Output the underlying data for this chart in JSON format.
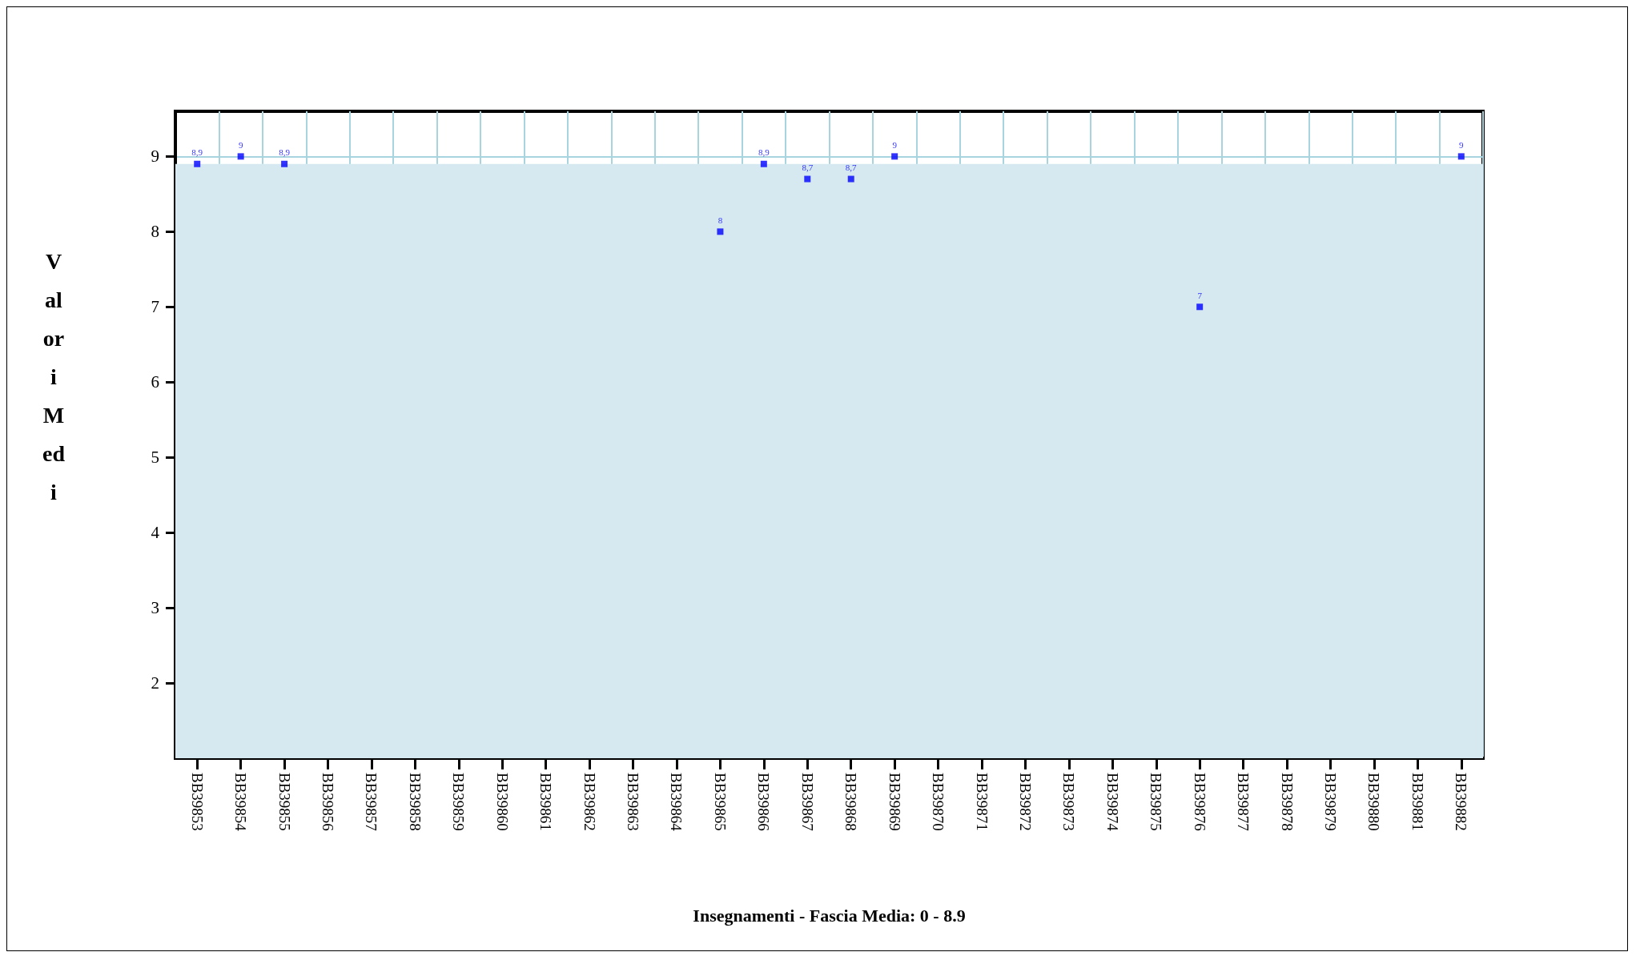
{
  "chart_data": {
    "type": "scatter",
    "xlabel": "Insegnamenti - Fascia Media: 0 - 8.9",
    "ylabel": "Valori Medi",
    "categories": [
      "BB39853",
      "BB39854",
      "BB39855",
      "BB39856",
      "BB39857",
      "BB39858",
      "BB39859",
      "BB39860",
      "BB39861",
      "BB39862",
      "BB39863",
      "BB39864",
      "BB39865",
      "BB39866",
      "BB39867",
      "BB39868",
      "BB39869",
      "BB39870",
      "BB39871",
      "BB39872",
      "BB39873",
      "BB39874",
      "BB39875",
      "BB39876",
      "BB39877",
      "BB39878",
      "BB39879",
      "BB39880",
      "BB39881",
      "BB39882"
    ],
    "series": [
      {
        "color": "#0000ff",
        "values": [
          8.9,
          9,
          8.9,
          null,
          null,
          null,
          null,
          null,
          null,
          null,
          null,
          null,
          8,
          8.9,
          8.7,
          8.7,
          9,
          null,
          null,
          null,
          null,
          null,
          null,
          7,
          null,
          null,
          null,
          null,
          null,
          9
        ],
        "value_labels": [
          "8,9",
          "9",
          "8,9",
          null,
          null,
          null,
          null,
          null,
          null,
          null,
          null,
          null,
          "8",
          "8,9",
          "8,7",
          "8,7",
          "9",
          null,
          null,
          null,
          null,
          null,
          null,
          "7",
          null,
          null,
          null,
          null,
          null,
          "9"
        ]
      }
    ],
    "ylim": [
      1,
      9.6
    ],
    "yticks": [
      2,
      3,
      4,
      5,
      6,
      7,
      8,
      9
    ],
    "bands": [
      {
        "axis": "y",
        "from": 1,
        "to": 8.9,
        "color": "#d6e9f0"
      }
    ],
    "grid": true,
    "marker": "square"
  }
}
